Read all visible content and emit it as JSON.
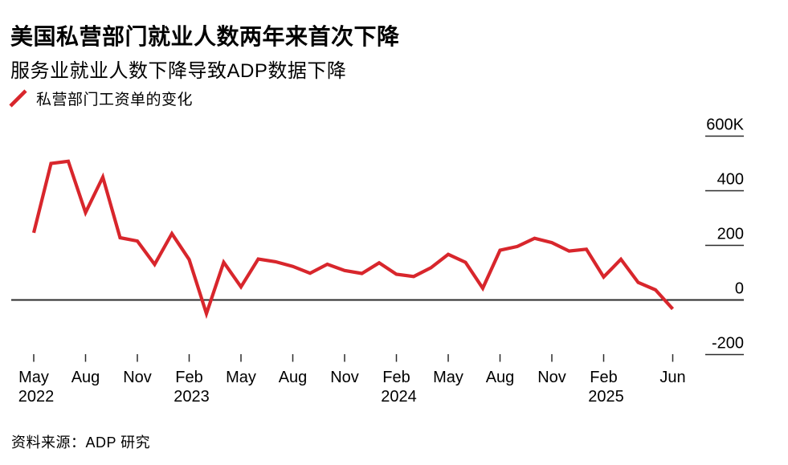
{
  "header": {
    "title": "美国私营部门就业人数两年来首次下降",
    "subtitle": "服务业就业人数下降导致ADP数据下降"
  },
  "legend": {
    "label": "私营部门工资单的变化"
  },
  "footer": {
    "source": "资料来源：ADP 研究"
  },
  "colors": {
    "line": "#d8262c",
    "axis": "#2b2b2b",
    "text": "#000000",
    "background": "#ffffff"
  },
  "chart_data": {
    "type": "line",
    "title": "美国私营部门就业人数两年来首次下降",
    "subtitle": "服务业就业人数下降导致ADP数据下降",
    "units": "thousands of jobs (K), monthly change",
    "x": [
      "2022-05",
      "2022-06",
      "2022-07",
      "2022-08",
      "2022-09",
      "2022-10",
      "2022-11",
      "2022-12",
      "2023-01",
      "2023-02",
      "2023-03",
      "2023-04",
      "2023-05",
      "2023-06",
      "2023-07",
      "2023-08",
      "2023-09",
      "2023-10",
      "2023-11",
      "2023-12",
      "2024-01",
      "2024-02",
      "2024-03",
      "2024-04",
      "2024-05",
      "2024-06",
      "2024-07",
      "2024-08",
      "2024-09",
      "2024-10",
      "2024-11",
      "2024-12",
      "2025-01",
      "2025-02",
      "2025-03",
      "2025-04",
      "2025-05",
      "2025-06"
    ],
    "series": [
      {
        "name": "私营部门工资单的变化",
        "color": "#d8262c",
        "values": [
          246,
          500,
          508,
          320,
          450,
          228,
          216,
          130,
          243,
          148,
          -50,
          138,
          48,
          150,
          140,
          123,
          98,
          131,
          108,
          97,
          136,
          94,
          86,
          118,
          167,
          138,
          43,
          182,
          196,
          226,
          210,
          179,
          186,
          84,
          149,
          64,
          37,
          -33
        ]
      }
    ],
    "ylim": [
      -290,
      640
    ],
    "y_ticks": [
      {
        "label": "600K",
        "value": 600
      },
      {
        "label": "400",
        "value": 400
      },
      {
        "label": "200",
        "value": 200
      },
      {
        "label": "0",
        "value": 0
      },
      {
        "label": "-200",
        "value": -200
      }
    ],
    "x_ticks": [
      {
        "month": "May",
        "year": "2022",
        "month_index": 0
      },
      {
        "month": "Aug",
        "year": "",
        "month_index": 3
      },
      {
        "month": "Nov",
        "year": "",
        "month_index": 6
      },
      {
        "month": "Feb",
        "year": "2023",
        "month_index": 9
      },
      {
        "month": "May",
        "year": "",
        "month_index": 12
      },
      {
        "month": "Aug",
        "year": "",
        "month_index": 15
      },
      {
        "month": "Nov",
        "year": "",
        "month_index": 18
      },
      {
        "month": "Feb",
        "year": "2024",
        "month_index": 21
      },
      {
        "month": "May",
        "year": "",
        "month_index": 24
      },
      {
        "month": "Aug",
        "year": "",
        "month_index": 27
      },
      {
        "month": "Nov",
        "year": "",
        "month_index": 30
      },
      {
        "month": "Feb",
        "year": "2025",
        "month_index": 33
      },
      {
        "month": "Jun",
        "year": "",
        "month_index": 37
      }
    ],
    "grid": "zero-line-only",
    "legend_position": "top-left",
    "y_axis_side": "right"
  }
}
